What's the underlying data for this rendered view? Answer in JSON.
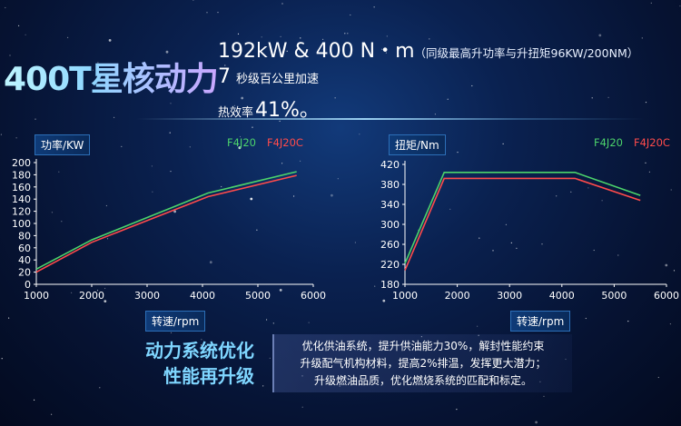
{
  "hero": {
    "title": "400T星核动力",
    "power_torque": "192kW & 400 N・m",
    "power_torque_note": "（同级最高升功率与升扭矩96KW/200NM）",
    "accel_value": "7",
    "accel_text": "秒级百公里加速",
    "efficiency_label": "热效率",
    "efficiency_value": "41%。"
  },
  "colors": {
    "F4J20": "#4cd36b",
    "F4J20C": "#ff4b4b",
    "accent": "#7fd6ff"
  },
  "slogan": {
    "line1": "动力系统优化",
    "line2": "性能再升级"
  },
  "description": [
    "优化供油系统，提升供油能力30%，解封性能约束",
    "升级配气机构材料，提高2%排温，发挥更大潜力；",
    "升级燃油品质，优化燃烧系统的匹配和标定。"
  ],
  "chart_data": [
    {
      "type": "line",
      "title": "功率/KW",
      "xlabel": "转速/rpm",
      "ylabel": "功率/KW",
      "xlim": [
        1000,
        6000
      ],
      "ylim": [
        0,
        200
      ],
      "xticks": [
        1000,
        2000,
        3000,
        4000,
        5000,
        6000
      ],
      "yticks": [
        0,
        20,
        40,
        60,
        80,
        100,
        120,
        140,
        160,
        180,
        200
      ],
      "grid": false,
      "legend_position": "top-right",
      "series": [
        {
          "name": "F4J20",
          "color": "#4cd36b",
          "x": [
            1000,
            2000,
            4100,
            5700
          ],
          "y": [
            25,
            73,
            150,
            185
          ]
        },
        {
          "name": "F4J20C",
          "color": "#ff4b4b",
          "x": [
            1000,
            2000,
            4100,
            5700
          ],
          "y": [
            20,
            69,
            144,
            179
          ]
        }
      ]
    },
    {
      "type": "line",
      "title": "扭矩/Nm",
      "xlabel": "转速/rpm",
      "ylabel": "扭矩/Nm",
      "xlim": [
        1000,
        6000
      ],
      "ylim": [
        180,
        420
      ],
      "xticks": [
        1000,
        2000,
        3000,
        4000,
        5000,
        6000
      ],
      "yticks": [
        180,
        220,
        260,
        300,
        340,
        380,
        420
      ],
      "grid": false,
      "legend_position": "top-right",
      "series": [
        {
          "name": "F4J20",
          "color": "#4cd36b",
          "x": [
            1000,
            1750,
            4250,
            5500
          ],
          "y": [
            222,
            404,
            404,
            358
          ]
        },
        {
          "name": "F4J20C",
          "color": "#ff4b4b",
          "x": [
            1000,
            1750,
            4250,
            5500
          ],
          "y": [
            208,
            392,
            392,
            348
          ]
        }
      ]
    }
  ]
}
